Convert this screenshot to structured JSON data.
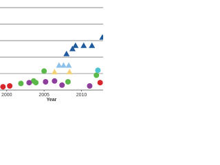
{
  "chart_data": {
    "type": "scatter",
    "x_label": "Year",
    "xlim": [
      1999.1,
      2012.9
    ],
    "xticks": [
      2000,
      2005,
      2010
    ],
    "ylim": [
      0,
      5.46
    ],
    "grid_lines": [
      1,
      2,
      3,
      4,
      5
    ],
    "grid": true,
    "series": [
      {
        "color": "#d6262b",
        "marker": "circle",
        "x": [
          1999.5,
          2000.4,
          2012.5
        ],
        "values": [
          0.2,
          0.25,
          0.45
        ]
      },
      {
        "color": "#5cb84a",
        "marker": "circle",
        "x": [
          2001.9,
          2003.6,
          2003.9,
          2005,
          2008.2,
          2012
        ],
        "values": [
          0.4,
          0.55,
          0.45,
          1.15,
          0.5,
          0.9
        ]
      },
      {
        "color": "#8e3f9c",
        "marker": "circle",
        "x": [
          2003,
          2005.2,
          2006.4,
          2007.4,
          2011.1
        ],
        "values": [
          0.45,
          0.5,
          0.55,
          0.3,
          0.25
        ]
      },
      {
        "color": "#4fc3d0",
        "marker": "circle",
        "x": [
          2012.2
        ],
        "values": [
          1.2
        ]
      },
      {
        "color": "#8fc1e8",
        "marker": "triangle",
        "x": [
          2007,
          2007.6,
          2008.3
        ],
        "values": [
          1.5,
          1.5,
          1.5
        ]
      },
      {
        "color": "#f2d27a",
        "marker": "triangle",
        "x": [
          2006.4,
          2008.4
        ],
        "values": [
          1.1,
          1.1
        ]
      },
      {
        "color": "#1f5a9e",
        "marker": "triangle",
        "x": [
          2008.0,
          2008.8,
          2009.2,
          2010.3,
          2011.4,
          2012.8
        ],
        "values": [
          2.2,
          2.5,
          2.7,
          2.7,
          2.7,
          3.2
        ]
      }
    ]
  }
}
